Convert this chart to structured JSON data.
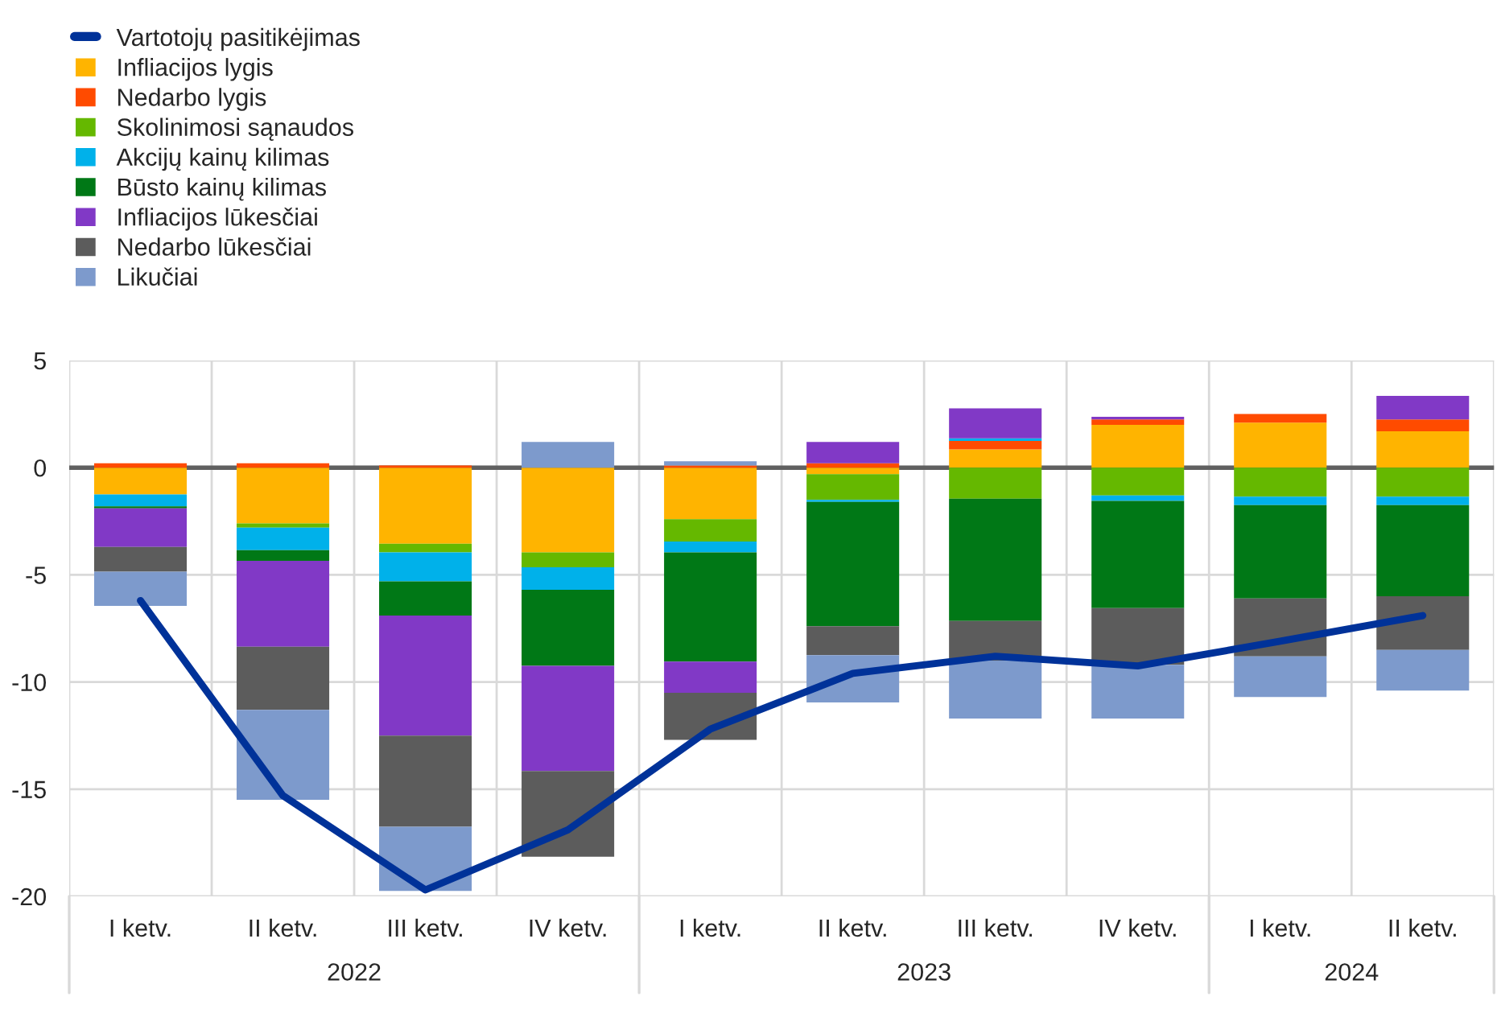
{
  "chart_data": {
    "type": "bar",
    "stacked": true,
    "categories": [
      "I ketv.",
      "II ketv.",
      "III ketv.",
      "IV ketv.",
      "I ketv.",
      "II ketv.",
      "III ketv.",
      "IV ketv.",
      "I ketv.",
      "II ketv."
    ],
    "series": [
      {
        "name": "Vartotojų pasitikėjimas",
        "type": "line",
        "color": "#003299",
        "values": [
          -6.2,
          -15.3,
          -19.7,
          -16.9,
          -12.2,
          -9.6,
          -8.8,
          -9.25,
          -8.1,
          -6.9
        ]
      },
      {
        "name": "Infliacijos lygis",
        "color": "#ffb400",
        "values": [
          -1.25,
          -2.6,
          -3.55,
          -3.95,
          -2.4,
          -0.3,
          0.85,
          2.0,
          2.1,
          1.7
        ]
      },
      {
        "name": "Nedarbo lygis",
        "color": "#ff4b00",
        "values": [
          0.2,
          0.2,
          0.1,
          0,
          0.1,
          0.2,
          0.4,
          0.25,
          0.4,
          0.55
        ]
      },
      {
        "name": "Skolinimosi sąnaudos",
        "color": "#65b800",
        "values": [
          0,
          -0.2,
          -0.4,
          -0.7,
          -1.05,
          -1.2,
          -1.45,
          -1.3,
          -1.35,
          -1.35
        ]
      },
      {
        "name": "Akcijų kainų kilimas",
        "color": "#00b1ea",
        "values": [
          -0.55,
          -1.05,
          -1.35,
          -1.05,
          -0.5,
          -0.1,
          0.12,
          -0.25,
          -0.4,
          -0.4
        ]
      },
      {
        "name": "Būsto kainų kilimas",
        "color": "#007816",
        "values": [
          -0.1,
          -0.5,
          -1.6,
          -3.55,
          -5.1,
          -5.8,
          -5.7,
          -5.0,
          -4.35,
          -4.25
        ]
      },
      {
        "name": "Infliacijos lūkesčiai",
        "color": "#8139c6",
        "values": [
          -1.8,
          -4.0,
          -5.6,
          -4.9,
          -1.45,
          1.0,
          1.4,
          0.12,
          0,
          1.1
        ]
      },
      {
        "name": "Nedarbo lūkesčiai",
        "color": "#5c5c5c",
        "values": [
          -1.15,
          -2.95,
          -4.25,
          -4.0,
          -2.2,
          -1.35,
          -1.85,
          -2.65,
          -2.7,
          -2.5
        ]
      },
      {
        "name": "Likučiai",
        "color": "#7d9acc",
        "values": [
          -1.6,
          -4.2,
          -3.0,
          1.2,
          0.2,
          -2.2,
          -2.7,
          -2.5,
          -1.9,
          -1.9
        ]
      }
    ],
    "annotations": [
      "2022",
      "2023",
      "2024"
    ],
    "ylim": [
      -20,
      5
    ],
    "yticks": [
      -20,
      -15,
      -10,
      -5,
      0,
      5
    ],
    "ref_lines": [
      {
        "axis": "y",
        "value": 0,
        "color": "#606060"
      }
    ],
    "grid": true,
    "legend": "top left"
  }
}
